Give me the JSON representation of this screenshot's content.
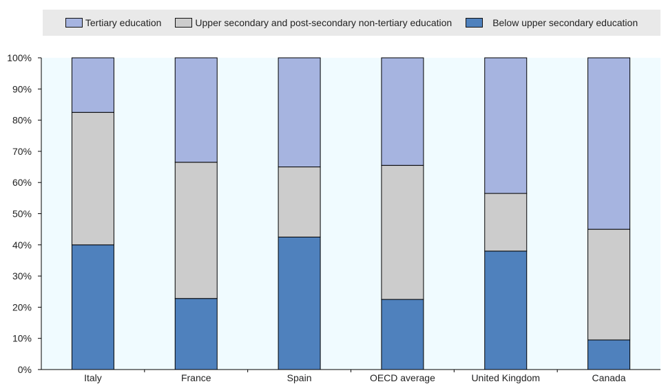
{
  "chart_data": {
    "type": "bar",
    "stacked": true,
    "categories": [
      "Italy",
      "France",
      "Spain",
      "OECD average",
      "United Kingdom",
      "Canada"
    ],
    "series": [
      {
        "name": "Below upper secondary education",
        "color": "#4f81bd",
        "values": [
          40,
          22.8,
          42.5,
          22.5,
          38,
          9.5
        ]
      },
      {
        "name": "Upper secondary and post-secondary non-tertiary education",
        "color": "#cccccc",
        "values": [
          42.5,
          43.7,
          22.5,
          43,
          18.5,
          35.5
        ]
      },
      {
        "name": "Tertiary education",
        "color": "#a6b4e0",
        "values": [
          17.5,
          33.5,
          35,
          34.5,
          43.5,
          55
        ]
      }
    ],
    "legend_order": [
      "Tertiary education",
      "Upper secondary and post-secondary non-tertiary education",
      "Below upper secondary education"
    ],
    "yticks": [
      "0%",
      "10%",
      "20%",
      "30%",
      "40%",
      "50%",
      "60%",
      "70%",
      "80%",
      "90%",
      "100%"
    ],
    "ylim": [
      0,
      100
    ],
    "legend_position": "top",
    "grid": false,
    "plot_background": "#f0fbff"
  }
}
